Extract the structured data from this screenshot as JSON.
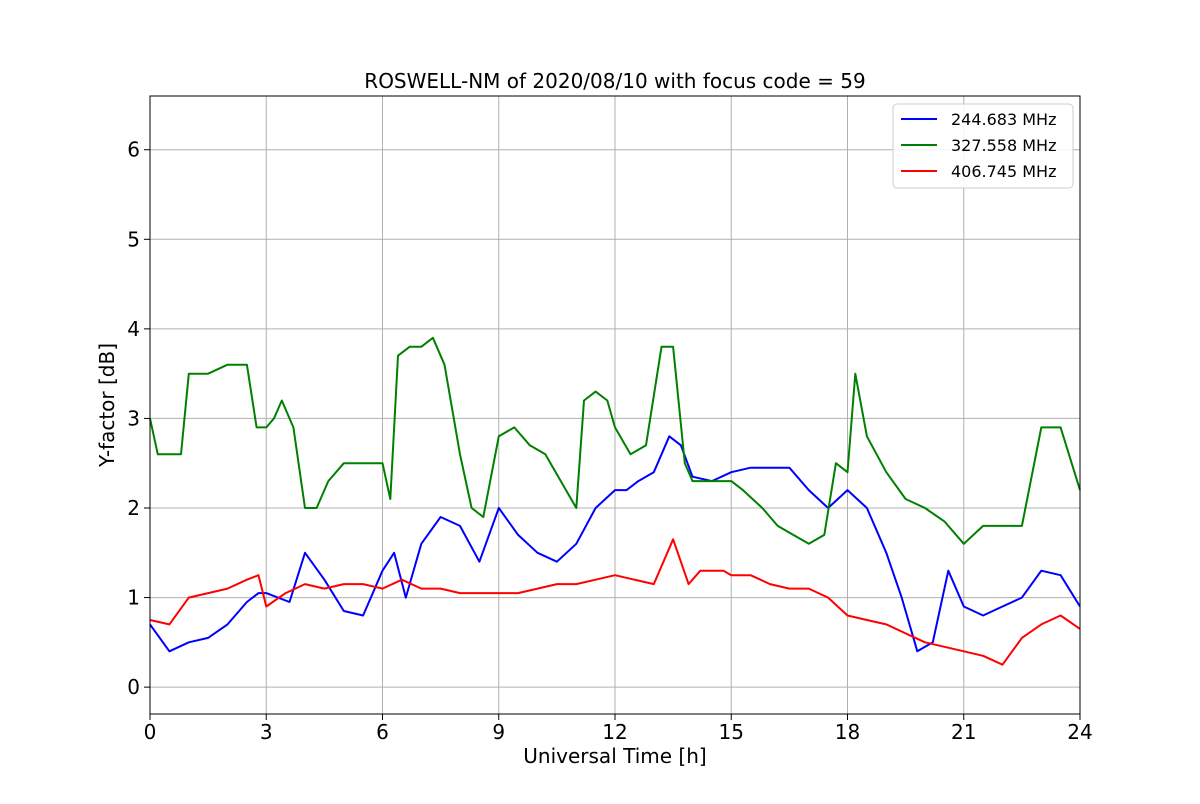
{
  "chart_data": {
    "type": "line",
    "title": "ROSWELL-NM of 2020/08/10 with focus code = 59",
    "xlabel": "Universal Time [h]",
    "ylabel": "Y-factor [dB]",
    "xlim": [
      0,
      24
    ],
    "ylim": [
      -0.3,
      6.6
    ],
    "xticks": [
      0,
      3,
      6,
      9,
      12,
      15,
      18,
      21,
      24
    ],
    "yticks": [
      0,
      1,
      2,
      3,
      4,
      5,
      6
    ],
    "grid": true,
    "legend_position": "top-right",
    "series": [
      {
        "name": "244.683 MHz",
        "color": "#0000ff",
        "x": [
          0,
          0.5,
          1,
          1.5,
          2,
          2.5,
          2.8,
          3,
          3.3,
          3.6,
          4,
          4.5,
          5,
          5.5,
          6,
          6.3,
          6.6,
          7,
          7.5,
          8,
          8.5,
          9,
          9.5,
          10,
          10.5,
          11,
          11.5,
          12,
          12.3,
          12.6,
          13,
          13.4,
          13.7,
          14,
          14.5,
          15,
          15.5,
          16,
          16.5,
          17,
          17.5,
          18,
          18.5,
          19,
          19.4,
          19.8,
          20.2,
          20.6,
          21,
          21.5,
          22,
          22.5,
          23,
          23.5,
          24
        ],
        "y": [
          0.7,
          0.4,
          0.5,
          0.55,
          0.7,
          0.95,
          1.05,
          1.05,
          1.0,
          0.95,
          1.5,
          1.2,
          0.85,
          0.8,
          1.3,
          1.5,
          1.0,
          1.6,
          1.9,
          1.8,
          1.4,
          2.0,
          1.7,
          1.5,
          1.4,
          1.6,
          2.0,
          2.2,
          2.2,
          2.3,
          2.4,
          2.8,
          2.7,
          2.35,
          2.3,
          2.4,
          2.45,
          2.45,
          2.45,
          2.2,
          2.0,
          2.2,
          2.0,
          1.5,
          1.0,
          0.4,
          0.5,
          1.3,
          0.9,
          0.8,
          0.9,
          1.0,
          1.3,
          1.25,
          0.9
        ]
      },
      {
        "name": "327.558 MHz",
        "color": "#008000",
        "x": [
          0,
          0.2,
          0.5,
          0.8,
          1,
          1.5,
          2,
          2.5,
          2.75,
          3,
          3.2,
          3.4,
          3.7,
          4,
          4.3,
          4.6,
          5,
          5.5,
          6,
          6.2,
          6.4,
          6.7,
          7,
          7.3,
          7.6,
          8,
          8.3,
          8.6,
          9,
          9.4,
          9.8,
          10.2,
          10.6,
          11,
          11.2,
          11.5,
          11.8,
          12,
          12.4,
          12.8,
          13.2,
          13.5,
          13.8,
          14,
          14.5,
          15,
          15.3,
          15.8,
          16.2,
          16.6,
          17,
          17.4,
          17.7,
          18,
          18.2,
          18.5,
          19,
          19.5,
          20,
          20.5,
          21,
          21.5,
          22,
          22.5,
          23,
          23.5,
          24
        ],
        "y": [
          3.0,
          2.6,
          2.6,
          2.6,
          3.5,
          3.5,
          3.6,
          3.6,
          2.9,
          2.9,
          3.0,
          3.2,
          2.9,
          2.0,
          2.0,
          2.3,
          2.5,
          2.5,
          2.5,
          2.1,
          3.7,
          3.8,
          3.8,
          3.9,
          3.6,
          2.6,
          2.0,
          1.9,
          2.8,
          2.9,
          2.7,
          2.6,
          2.3,
          2.0,
          3.2,
          3.3,
          3.2,
          2.9,
          2.6,
          2.7,
          3.8,
          3.8,
          2.5,
          2.3,
          2.3,
          2.3,
          2.2,
          2.0,
          1.8,
          1.7,
          1.6,
          1.7,
          2.5,
          2.4,
          3.5,
          2.8,
          2.4,
          2.1,
          2.0,
          1.85,
          1.6,
          1.8,
          1.8,
          1.8,
          2.9,
          2.9,
          2.2
        ]
      },
      {
        "name": "406.745 MHz",
        "color": "#ff0000",
        "x": [
          0,
          0.5,
          1,
          1.5,
          2,
          2.5,
          2.8,
          3,
          3.5,
          4,
          4.5,
          5,
          5.5,
          6,
          6.5,
          7,
          7.5,
          8,
          8.5,
          9,
          9.5,
          10,
          10.5,
          11,
          11.5,
          12,
          12.5,
          13,
          13.5,
          13.9,
          14.2,
          14.8,
          15,
          15.5,
          16,
          16.5,
          17,
          17.5,
          18,
          18.5,
          19,
          19.5,
          20,
          20.5,
          21,
          21.5,
          22,
          22.5,
          23,
          23.5,
          24
        ],
        "y": [
          0.75,
          0.7,
          1.0,
          1.05,
          1.1,
          1.2,
          1.25,
          0.9,
          1.05,
          1.15,
          1.1,
          1.15,
          1.15,
          1.1,
          1.2,
          1.1,
          1.1,
          1.05,
          1.05,
          1.05,
          1.05,
          1.1,
          1.15,
          1.15,
          1.2,
          1.25,
          1.2,
          1.15,
          1.65,
          1.15,
          1.3,
          1.3,
          1.25,
          1.25,
          1.15,
          1.1,
          1.1,
          1.0,
          0.8,
          0.75,
          0.7,
          0.6,
          0.5,
          0.45,
          0.4,
          0.35,
          0.25,
          0.55,
          0.7,
          0.8,
          0.65
        ]
      }
    ]
  }
}
